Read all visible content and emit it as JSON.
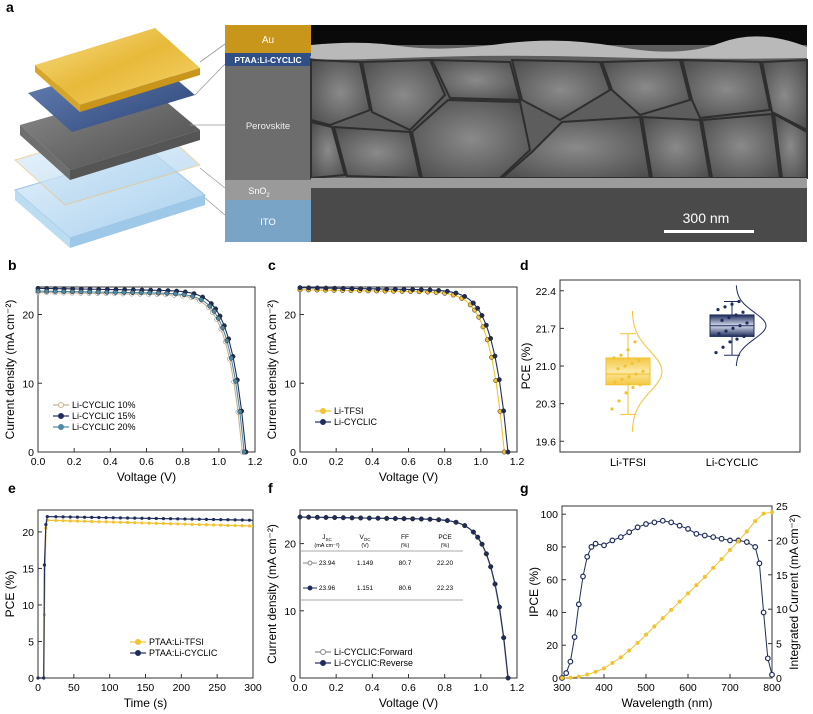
{
  "panel_a": {
    "letter": "a",
    "layers": {
      "au": "Au",
      "htl": "PTAA:Li-CYCLIC",
      "perovskite": "Perovskite",
      "sno2": "SnO",
      "sno2_sub": "2",
      "ito": "ITO"
    },
    "scale_bar": "300 nm"
  },
  "colors": {
    "navy": "#1f2d5c",
    "gold": "#f2c230",
    "tan": "#c9b28e",
    "teal": "#4e8aa3",
    "sem_bg": "#5a5a5a"
  },
  "chart_data": [
    {
      "id": "b",
      "letter": "b",
      "type": "line",
      "xlabel": "Voltage (V)",
      "ylabel": "Current density (mA cm⁻²)",
      "xlim": [
        0,
        1.2
      ],
      "ylim": [
        0,
        24
      ],
      "xticks": [
        "0.0",
        "0.2",
        "0.4",
        "0.6",
        "0.8",
        "1.0",
        "1.2"
      ],
      "yticks": [
        "0",
        "10",
        "20"
      ],
      "legend_position": "bottom-left",
      "series": [
        {
          "name": "Li-CYCLIC 10%",
          "jsc": 23.2,
          "voc": 1.13,
          "color": "#c9b28e",
          "marker": "open"
        },
        {
          "name": "Li-CYCLIC 15%",
          "jsc": 23.8,
          "voc": 1.15,
          "color": "#1f2d5c",
          "marker": "filled"
        },
        {
          "name": "Li-CYCLIC 20%",
          "jsc": 23.4,
          "voc": 1.14,
          "color": "#4e8aa3",
          "marker": "filled"
        }
      ]
    },
    {
      "id": "c",
      "letter": "c",
      "type": "line",
      "xlabel": "Voltage (V)",
      "ylabel": "Current density (mA cm⁻²)",
      "xlim": [
        0,
        1.2
      ],
      "ylim": [
        0,
        24
      ],
      "xticks": [
        "0.0",
        "0.2",
        "0.4",
        "0.6",
        "0.8",
        "1.0",
        "1.2"
      ],
      "yticks": [
        "0",
        "10",
        "20"
      ],
      "legend_position": "bottom-left",
      "series": [
        {
          "name": "Li-TFSI",
          "jsc": 23.6,
          "voc": 1.13,
          "color": "#f2c230",
          "marker": "filled"
        },
        {
          "name": "Li-CYCLIC",
          "jsc": 23.9,
          "voc": 1.15,
          "color": "#1f2d5c",
          "marker": "filled"
        }
      ]
    },
    {
      "id": "d",
      "letter": "d",
      "type": "box",
      "ylabel": "PCE (%)",
      "ylim": [
        19.4,
        22.6
      ],
      "yticks": [
        "19.6",
        "20.3",
        "21.0",
        "21.7",
        "22.4"
      ],
      "categories": [
        "Li-TFSI",
        "Li-CYCLIC"
      ],
      "boxes": [
        {
          "category": "Li-TFSI",
          "min": 20.1,
          "q1": 20.65,
          "median": 20.85,
          "q3": 21.15,
          "max": 21.6,
          "color": "#f2c230",
          "points": [
            20.2,
            20.35,
            20.5,
            20.6,
            20.65,
            20.7,
            20.75,
            20.8,
            20.85,
            20.9,
            20.95,
            21.0,
            21.05,
            21.1,
            21.15,
            21.2,
            21.3,
            21.45
          ]
        },
        {
          "category": "Li-CYCLIC",
          "min": 21.2,
          "q1": 21.55,
          "median": 21.75,
          "q3": 21.95,
          "max": 22.2,
          "color": "#1f2d5c",
          "points": [
            21.25,
            21.35,
            21.45,
            21.5,
            21.55,
            21.6,
            21.65,
            21.7,
            21.75,
            21.8,
            21.85,
            21.9,
            21.95,
            22.0,
            22.05,
            22.1,
            22.15,
            22.2
          ]
        }
      ]
    },
    {
      "id": "e",
      "letter": "e",
      "type": "line",
      "xlabel": "Time (s)",
      "ylabel": "PCE (%)",
      "xlim": [
        0,
        300
      ],
      "ylim": [
        0,
        23
      ],
      "xticks": [
        "0",
        "50",
        "100",
        "150",
        "200",
        "250",
        "300"
      ],
      "yticks": [
        "0",
        "5",
        "10",
        "15",
        "20"
      ],
      "legend_position": "bottom-right",
      "series": [
        {
          "name": "PTAA:Li-TFSI",
          "color": "#f2c230",
          "start": 21.6,
          "end": 20.8
        },
        {
          "name": "PTAA:Li-CYCLIC",
          "color": "#1f2d5c",
          "start": 22.1,
          "end": 21.6
        }
      ]
    },
    {
      "id": "f",
      "letter": "f",
      "type": "line",
      "xlabel": "Voltage (V)",
      "ylabel": "Current density (mA cm⁻²)",
      "xlim": [
        0,
        1.2
      ],
      "ylim": [
        0,
        25
      ],
      "xticks": [
        "0.0",
        "0.2",
        "0.4",
        "0.6",
        "0.8",
        "1.0",
        "1.2"
      ],
      "yticks": [
        "0",
        "10",
        "20"
      ],
      "legend_position": "bottom-left",
      "series": [
        {
          "name": "Li-CYCLIC:Forward",
          "jsc": 23.94,
          "voc": 1.149,
          "color": "#888888",
          "marker": "open"
        },
        {
          "name": "Li-CYCLIC:Reverse",
          "jsc": 23.96,
          "voc": 1.151,
          "color": "#1f2d5c",
          "marker": "filled"
        }
      ],
      "table": {
        "headers": [
          [
            "J",
            "SC",
            "(mA cm⁻²)"
          ],
          [
            "V",
            "OC",
            "(V)"
          ],
          [
            "FF",
            "",
            "(%)"
          ],
          [
            "PCE",
            "",
            "(%)"
          ]
        ],
        "rows": [
          [
            "23.94",
            "1.149",
            "80.7",
            "22.20"
          ],
          [
            "23.96",
            "1.151",
            "80.6",
            "22.23"
          ]
        ]
      }
    },
    {
      "id": "g",
      "letter": "g",
      "type": "line",
      "xlabel": "Wavelength (nm)",
      "ylabel": "IPCE (%)",
      "y2label": "Integrated Current (mA cm⁻²)",
      "xlim": [
        300,
        800
      ],
      "ylim": [
        0,
        105
      ],
      "y2lim": [
        0,
        25
      ],
      "xticks": [
        "300",
        "400",
        "500",
        "600",
        "700",
        "800"
      ],
      "yticks": [
        "0",
        "20",
        "40",
        "60",
        "80",
        "100"
      ],
      "y2ticks": [
        "0",
        "5",
        "10",
        "15",
        "20",
        "25"
      ],
      "series": [
        {
          "name": "IPCE",
          "color": "#1f2d5c",
          "x": [
            300,
            310,
            320,
            330,
            340,
            350,
            360,
            370,
            380,
            400,
            420,
            440,
            460,
            480,
            500,
            520,
            540,
            560,
            580,
            600,
            620,
            640,
            660,
            680,
            700,
            720,
            740,
            760,
            770,
            780,
            790,
            800
          ],
          "y": [
            0,
            3,
            10,
            25,
            45,
            62,
            74,
            80,
            82,
            81,
            84,
            86,
            89,
            92,
            94,
            95,
            96,
            95,
            93,
            91,
            88,
            87,
            86,
            85,
            84,
            84,
            83,
            80,
            70,
            40,
            12,
            2
          ]
        },
        {
          "name": "Integrated Current",
          "color": "#f2c230",
          "x": [
            300,
            320,
            340,
            360,
            380,
            400,
            420,
            440,
            460,
            480,
            500,
            520,
            540,
            560,
            580,
            600,
            620,
            640,
            660,
            680,
            700,
            720,
            740,
            760,
            780,
            800
          ],
          "y": [
            0,
            0.05,
            0.2,
            0.5,
            0.9,
            1.4,
            2.2,
            3.0,
            4.0,
            5.1,
            6.3,
            7.5,
            8.7,
            9.9,
            11.1,
            12.3,
            13.5,
            14.7,
            16.0,
            17.3,
            18.6,
            19.9,
            21.3,
            22.8,
            23.9,
            24.1
          ]
        }
      ]
    }
  ]
}
